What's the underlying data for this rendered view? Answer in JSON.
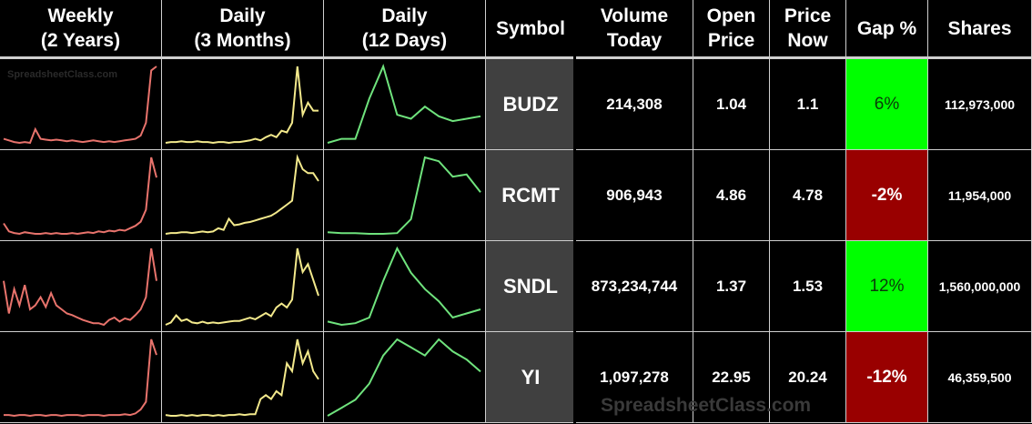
{
  "header": {
    "columns": [
      [
        "Weekly",
        "(2 Years)"
      ],
      [
        "Daily",
        "(3 Months)"
      ],
      [
        "Daily",
        "(12 Days)"
      ],
      [
        "Symbol"
      ],
      [
        "Volume",
        "Today"
      ],
      [
        "Open",
        "Price"
      ],
      [
        "Price",
        "Now"
      ],
      [
        "Gap %"
      ],
      [
        "Shares"
      ]
    ]
  },
  "sparkline_colors": {
    "weekly": "#e8736c",
    "daily_3m": "#f3e98c",
    "daily_12d": "#6fe37d"
  },
  "gap_colors": {
    "up": "#00ff00",
    "down": "#990000"
  },
  "rows": [
    {
      "weekly": [
        10,
        8,
        6,
        5,
        6,
        5,
        22,
        10,
        9,
        8,
        9,
        8,
        7,
        8,
        7,
        6,
        7,
        8,
        7,
        6,
        7,
        6,
        7,
        8,
        9,
        10,
        14,
        30,
        95,
        100
      ],
      "daily_3m": [
        5,
        6,
        6,
        7,
        6,
        6,
        7,
        6,
        6,
        5,
        6,
        6,
        5,
        6,
        6,
        7,
        8,
        10,
        8,
        12,
        15,
        12,
        20,
        18,
        30,
        100,
        40,
        55,
        45,
        45
      ],
      "daily_12d": [
        5,
        10,
        10,
        60,
        100,
        40,
        35,
        50,
        38,
        32,
        35,
        38
      ],
      "symbol": "BUDZ",
      "volume": "214,308",
      "open": "1.04",
      "price": "1.1",
      "gap": "6%",
      "gap_direction": "up",
      "shares": "112,973,000"
    },
    {
      "weekly": [
        18,
        8,
        6,
        5,
        7,
        6,
        5,
        5,
        6,
        5,
        6,
        5,
        5,
        6,
        5,
        6,
        7,
        6,
        8,
        7,
        9,
        8,
        10,
        9,
        12,
        15,
        20,
        35,
        100,
        75
      ],
      "daily_3m": [
        3,
        4,
        4,
        5,
        5,
        4,
        5,
        6,
        5,
        6,
        10,
        8,
        22,
        14,
        15,
        17,
        18,
        20,
        22,
        24,
        26,
        30,
        35,
        40,
        45,
        100,
        85,
        80,
        80,
        70
      ],
      "daily_12d": [
        3,
        2,
        2,
        1,
        1,
        2,
        20,
        100,
        95,
        75,
        78,
        55
      ],
      "symbol": "RCMT",
      "volume": "906,943",
      "open": "4.86",
      "price": "4.78",
      "gap": "-2%",
      "gap_direction": "down",
      "shares": "11,954,000"
    },
    {
      "weekly": [
        60,
        20,
        50,
        30,
        55,
        25,
        30,
        40,
        28,
        45,
        30,
        25,
        20,
        18,
        15,
        12,
        10,
        8,
        8,
        6,
        12,
        15,
        10,
        14,
        12,
        18,
        25,
        40,
        100,
        60
      ],
      "daily_3m": [
        3,
        6,
        15,
        8,
        10,
        6,
        5,
        7,
        5,
        6,
        5,
        6,
        7,
        8,
        8,
        10,
        12,
        10,
        14,
        18,
        14,
        25,
        30,
        25,
        35,
        100,
        70,
        80,
        60,
        40
      ],
      "daily_12d": [
        10,
        6,
        8,
        15,
        60,
        100,
        70,
        50,
        35,
        15,
        20,
        25
      ],
      "symbol": "SNDL",
      "volume": "873,234,744",
      "open": "1.37",
      "price": "1.53",
      "gap": "12%",
      "gap_direction": "up",
      "shares": "1,560,000,000"
    },
    {
      "weekly": [
        3,
        3,
        2,
        3,
        3,
        2,
        3,
        3,
        2,
        3,
        3,
        2,
        3,
        3,
        3,
        2,
        3,
        3,
        3,
        2,
        3,
        3,
        3,
        4,
        3,
        5,
        10,
        20,
        100,
        80
      ],
      "daily_3m": [
        5,
        4,
        4,
        5,
        4,
        5,
        4,
        5,
        5,
        4,
        5,
        4,
        5,
        5,
        6,
        5,
        6,
        6,
        25,
        30,
        25,
        35,
        30,
        70,
        60,
        100,
        70,
        85,
        60,
        50
      ],
      "daily_12d": [
        5,
        15,
        25,
        45,
        80,
        100,
        90,
        80,
        100,
        85,
        75,
        60
      ],
      "symbol": "YI",
      "volume": "1,097,278",
      "open": "22.95",
      "price": "20.24",
      "gap": "-12%",
      "gap_direction": "down",
      "shares": "46,359,500"
    }
  ],
  "watermark": "SpreadsheetClass.com"
}
